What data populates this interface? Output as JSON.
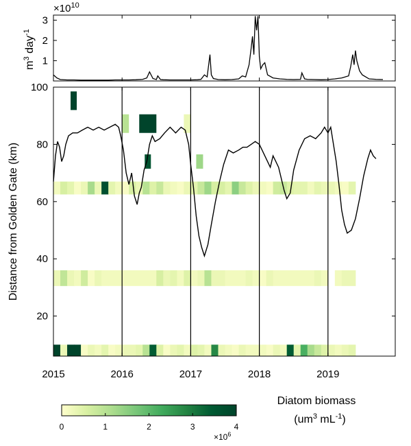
{
  "chart_data": [
    {
      "type": "line",
      "panel": "top",
      "ylabel": "m",
      "ylabel_sup": "3",
      "ylabel_rest": " day",
      "ylabel_sup2": "-1",
      "multiplier_base": "×10",
      "multiplier_exp": "10",
      "yticks": [
        "1",
        "2",
        "3"
      ],
      "ytick_values": [
        1,
        2,
        3
      ],
      "ylim": [
        0,
        3.25
      ],
      "xlim": [
        2015.0,
        2019.98
      ],
      "series": [
        {
          "x": [
            2015.0,
            2015.05,
            2015.1,
            2015.2,
            2015.3,
            2015.4,
            2015.5,
            2015.6,
            2015.7,
            2015.8,
            2015.9,
            2016.0,
            2016.1,
            2016.2,
            2016.3,
            2016.36,
            2016.4,
            2016.45,
            2016.5,
            2016.52,
            2016.56,
            2016.6,
            2016.7,
            2016.8,
            2016.9,
            2017.0,
            2017.1,
            2017.15,
            2017.2,
            2017.24,
            2017.28,
            2017.3,
            2017.33,
            2017.4,
            2017.5,
            2017.6,
            2017.7,
            2017.75,
            2017.8,
            2017.85,
            2017.88,
            2017.9,
            2017.92,
            2017.94,
            2017.96,
            2017.98,
            2018.0,
            2018.02,
            2018.05,
            2018.08,
            2018.12,
            2018.2,
            2018.3,
            2018.4,
            2018.5,
            2018.6,
            2018.62,
            2018.66,
            2018.7,
            2018.8,
            2018.9,
            2019.0,
            2019.1,
            2019.2,
            2019.3,
            2019.33,
            2019.36,
            2019.38,
            2019.4,
            2019.42,
            2019.46,
            2019.5,
            2019.55,
            2019.6,
            2019.7,
            2019.8
          ],
          "y": [
            0.3,
            0.15,
            0.07,
            0.05,
            0.05,
            0.04,
            0.04,
            0.04,
            0.04,
            0.04,
            0.05,
            0.05,
            0.05,
            0.06,
            0.08,
            0.15,
            0.45,
            0.12,
            0.07,
            0.25,
            0.07,
            0.06,
            0.05,
            0.05,
            0.05,
            0.05,
            0.06,
            0.08,
            0.3,
            0.2,
            1.3,
            0.3,
            0.12,
            0.07,
            0.06,
            0.07,
            0.1,
            0.25,
            0.2,
            0.8,
            1.6,
            2.2,
            1.3,
            3.2,
            2.5,
            3.2,
            1.2,
            0.6,
            0.8,
            0.9,
            0.3,
            0.15,
            0.1,
            0.08,
            0.07,
            0.08,
            0.4,
            0.1,
            0.08,
            0.07,
            0.06,
            0.07,
            0.1,
            0.15,
            0.25,
            0.7,
            1.3,
            0.8,
            1.5,
            1.0,
            0.5,
            0.3,
            0.2,
            0.1,
            0.08,
            0.07
          ]
        }
      ]
    },
    {
      "type": "heatmap",
      "panel": "main",
      "ylabel": "Distance from Golden Gate  (km)",
      "xticks": [
        "2015",
        "2016",
        "2017",
        "2018",
        "2019"
      ],
      "xtick_values": [
        2015,
        2016,
        2017,
        2018,
        2019
      ],
      "yticks": [
        "20",
        "40",
        "60",
        "80",
        "100"
      ],
      "ytick_values": [
        20,
        40,
        60,
        80,
        100
      ],
      "xlim": [
        2015.0,
        2019.98
      ],
      "ylim": [
        6,
        100
      ],
      "year_lines": [
        2016,
        2017,
        2018,
        2019
      ],
      "heatmap_bands": [
        {
          "y_range": [
            62.5,
            67
          ],
          "x_start": 2015.0,
          "x_end": 2019.4,
          "step": 0.1,
          "values": [
            0.2,
            0.6,
            0.4,
            0.1,
            0.3,
            1.2,
            0.3,
            3.7,
            0.4,
            0.2,
            0.1,
            0.6,
            0.3,
            1.0,
            0.5,
            0.8,
            0.3,
            0.2,
            0.1,
            0.3,
            0.4,
            0.8,
            1.3,
            0.6,
            0.6,
            0.4,
            1.5,
            0.8,
            0.5,
            0.3,
            0.2,
            0.1,
            0.7,
            0.8,
            0.5,
            0.4,
            0.4,
            0.2,
            0.4,
            0.3,
            0.3,
            0.2,
            0.1,
            0.4
          ]
        },
        {
          "y_range": [
            30.5,
            36
          ],
          "x_start": 2015.0,
          "x_end": 2019.4,
          "step": 0.1,
          "values": [
            0.3,
            0.9,
            0.3,
            0.2,
            0.7,
            0.1,
            0.3,
            0.2,
            0.2,
            0.2,
            0.2,
            0.2,
            0.2,
            0.2,
            0.2,
            0.6,
            0.3,
            0.4,
            0.2,
            0.5,
            0.2,
            0.3,
            1.0,
            0.3,
            0.3,
            0.2,
            0.2,
            0.2,
            0.3,
            0.2,
            0.1,
            0.3,
            0.2,
            0.2,
            0.2,
            0.2,
            0.2,
            0.2,
            0.3,
            0.2,
            null,
            0.2,
            0.3,
            0.3
          ]
        },
        {
          "y_range": [
            6,
            10
          ],
          "x_start": 2015.0,
          "x_end": 2019.4,
          "step": 0.1,
          "values": [
            4.0,
            0.3,
            4.0,
            4.0,
            0.1,
            0.3,
            0.2,
            0.4,
            0.1,
            0.2,
            0.3,
            0.3,
            0.4,
            1.0,
            3.4,
            0.5,
            0.1,
            0.3,
            0.4,
            0.2,
            0.5,
            0.4,
            0.2,
            2.8,
            0.3,
            0.2,
            0.1,
            0.3,
            0.2,
            0.2,
            0.2,
            0.1,
            0.3,
            0.2,
            3.4,
            0.4,
            2.2,
            1.2,
            0.8,
            0.5,
            0.3,
            0.2,
            0.3,
            0.4
          ]
        }
      ],
      "heatmap_patches": [
        {
          "x0": 2015.25,
          "x1": 2015.34,
          "y0": 92,
          "y1": 98.5,
          "value": 4.0
        },
        {
          "x0": 2016.0,
          "x1": 2016.1,
          "y0": 84,
          "y1": 90.5,
          "value": 1.0
        },
        {
          "x0": 2016.25,
          "x1": 2016.5,
          "y0": 84,
          "y1": 90.5,
          "value": 4.0
        },
        {
          "x0": 2016.9,
          "x1": 2017.0,
          "y0": 84,
          "y1": 90.5,
          "value": 0.3
        },
        {
          "x0": 2016.33,
          "x1": 2016.42,
          "y0": 71.5,
          "y1": 76.5,
          "value": 3.6
        },
        {
          "x0": 2017.08,
          "x1": 2017.18,
          "y0": 71.5,
          "y1": 76.5,
          "value": 1.3
        }
      ],
      "series": [
        {
          "x": [
            2015.0,
            2015.03,
            2015.06,
            2015.09,
            2015.12,
            2015.15,
            2015.18,
            2015.22,
            2015.28,
            2015.35,
            2015.42,
            2015.5,
            2015.58,
            2015.66,
            2015.74,
            2015.82,
            2015.9,
            2015.95,
            2015.98,
            2016.02,
            2016.06,
            2016.1,
            2016.14,
            2016.18,
            2016.22,
            2016.25,
            2016.28,
            2016.32,
            2016.36,
            2016.4,
            2016.44,
            2016.48,
            2016.55,
            2016.62,
            2016.7,
            2016.78,
            2016.86,
            2016.92,
            2016.97,
            2017.0,
            2017.04,
            2017.08,
            2017.12,
            2017.16,
            2017.2,
            2017.25,
            2017.3,
            2017.36,
            2017.42,
            2017.48,
            2017.55,
            2017.62,
            2017.7,
            2017.76,
            2017.82,
            2017.88,
            2017.94,
            2018.0,
            2018.04,
            2018.08,
            2018.12,
            2018.16,
            2018.2,
            2018.24,
            2018.28,
            2018.32,
            2018.36,
            2018.4,
            2018.45,
            2018.5,
            2018.58,
            2018.66,
            2018.74,
            2018.82,
            2018.9,
            2018.95,
            2019.0,
            2019.04,
            2019.08,
            2019.12,
            2019.16,
            2019.2,
            2019.24,
            2019.28,
            2019.34,
            2019.4,
            2019.46,
            2019.52,
            2019.58,
            2019.62,
            2019.66,
            2019.7
          ],
          "y": [
            67,
            76,
            81,
            79,
            74,
            76,
            80,
            83,
            84,
            84,
            85,
            86,
            85,
            86,
            85,
            86,
            87,
            86,
            83,
            78,
            70,
            66,
            70,
            62,
            59,
            63,
            65,
            71,
            74,
            80,
            83,
            81,
            82,
            84,
            86,
            84,
            86,
            85,
            80,
            73,
            65,
            55,
            48,
            44,
            41,
            45,
            52,
            60,
            67,
            73,
            78,
            77,
            78,
            79,
            79,
            80,
            81,
            80,
            78,
            76,
            74,
            72,
            76,
            74,
            72,
            68,
            64,
            61,
            63,
            71,
            78,
            82,
            83,
            82,
            84,
            86,
            84,
            86,
            80,
            74,
            66,
            57,
            52,
            49,
            50,
            54,
            61,
            69,
            75,
            78,
            76,
            75
          ]
        }
      ]
    },
    {
      "type": "colorbar",
      "panel": "legend",
      "title_line1": "Diatom biomass",
      "title_line2": "(um",
      "title_sup": "3",
      "title_rest": " mL",
      "title_sup2": "-1",
      "title_end": ")",
      "ticks": [
        "0",
        "1",
        "2",
        "3",
        "4"
      ],
      "tick_values": [
        0,
        1,
        2,
        3,
        4
      ],
      "range": [
        0,
        4
      ],
      "multiplier_base": "×10",
      "multiplier_exp": "6",
      "colors": [
        "#ffffcc",
        "#d9f0a3",
        "#addd8e",
        "#78c679",
        "#41ab5d",
        "#238443",
        "#005a32",
        "#00442b"
      ]
    }
  ]
}
